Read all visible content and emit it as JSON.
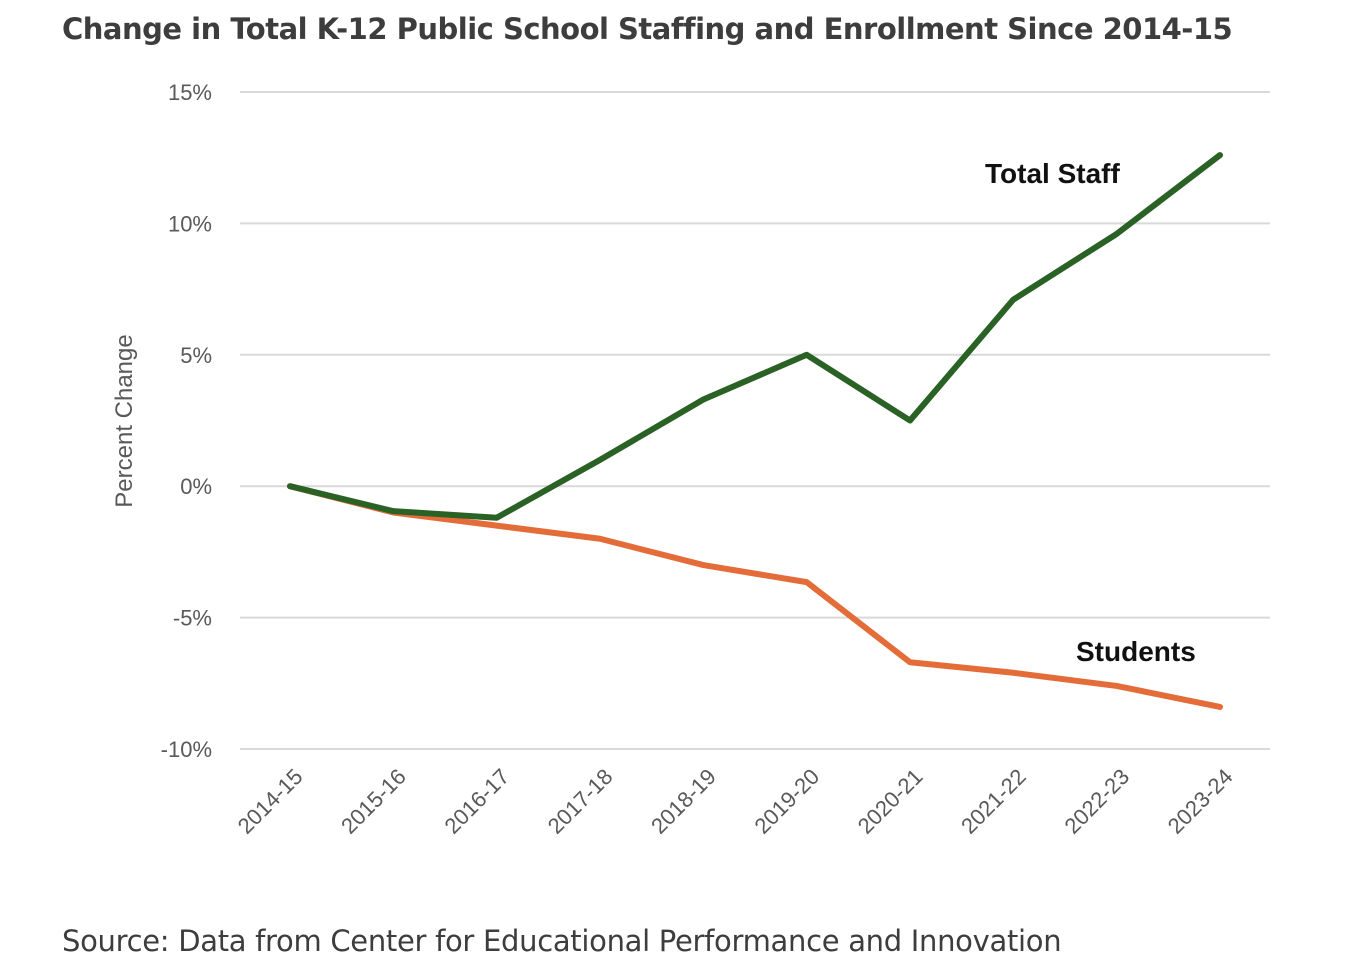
{
  "chart_data": {
    "type": "line",
    "title": "Change in Total K-12 Public School Staffing and Enrollment Since 2014-15",
    "xlabel": "",
    "ylabel": "Percent Change",
    "ylim": [
      -10,
      15
    ],
    "yticks": [
      15,
      10,
      5,
      0,
      -5,
      -10
    ],
    "ytick_labels": [
      "15%",
      "10%",
      "5%",
      "0%",
      "-5%",
      "-10%"
    ],
    "grid": true,
    "categories": [
      "2014-15",
      "2015-16",
      "2016-17",
      "2017-18",
      "2018-19",
      "2019-20",
      "2020-21",
      "2021-22",
      "2022-23",
      "2023-24"
    ],
    "series": [
      {
        "name": "Total Staff",
        "color": "#2a6125",
        "values": [
          0,
          -0.95,
          -1.2,
          1.0,
          3.3,
          5.0,
          2.5,
          7.1,
          9.6,
          12.6
        ]
      },
      {
        "name": "Students",
        "color": "#e46c38",
        "values": [
          0,
          -1.0,
          -1.5,
          -2.0,
          -3.0,
          -3.65,
          -6.7,
          -7.1,
          -7.6,
          -8.4
        ]
      }
    ],
    "source": "Source: Data from Center for Educational Performance and Innovation"
  }
}
